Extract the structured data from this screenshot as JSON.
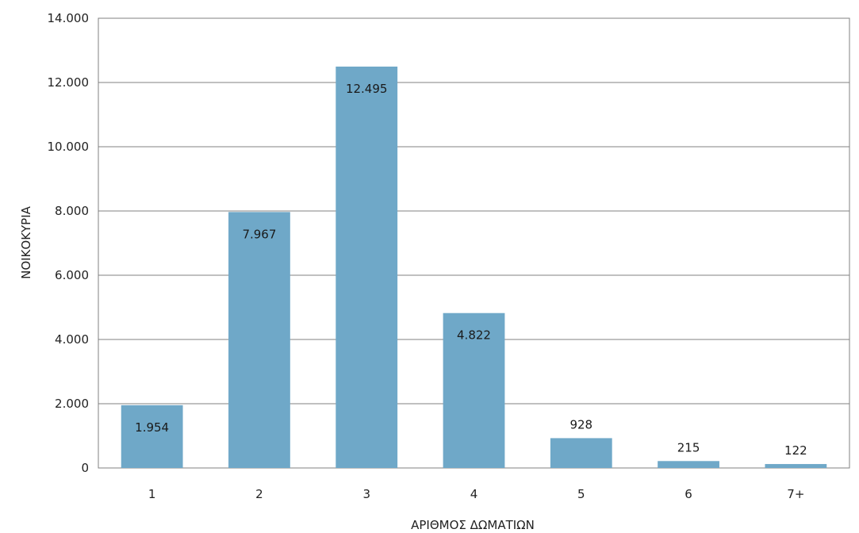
{
  "chart_data": {
    "type": "bar",
    "categories": [
      "1",
      "2",
      "3",
      "4",
      "5",
      "6",
      "7+"
    ],
    "values": [
      1954,
      7967,
      12495,
      4822,
      928,
      215,
      122
    ],
    "value_labels": [
      "1.954",
      "7.967",
      "12.495",
      "4.822",
      "928",
      "215",
      "122"
    ],
    "y_ticks": [
      0,
      2000,
      4000,
      6000,
      8000,
      10000,
      12000,
      14000
    ],
    "y_tick_labels": [
      "0",
      "2.000",
      "4.000",
      "6.000",
      "8.000",
      "10.000",
      "12.000",
      "14.000"
    ],
    "title": "",
    "xlabel": "ΑΡΙΘΜΟΣ ΔΩΜΑΤΙΩΝ",
    "ylabel": "ΝΟΙΚΟΚΥΡΙΑ",
    "ylim": [
      0,
      14000
    ],
    "grid": true,
    "legend": "none",
    "bar_color": "#6fa8c8",
    "grid_color": "#808080"
  }
}
